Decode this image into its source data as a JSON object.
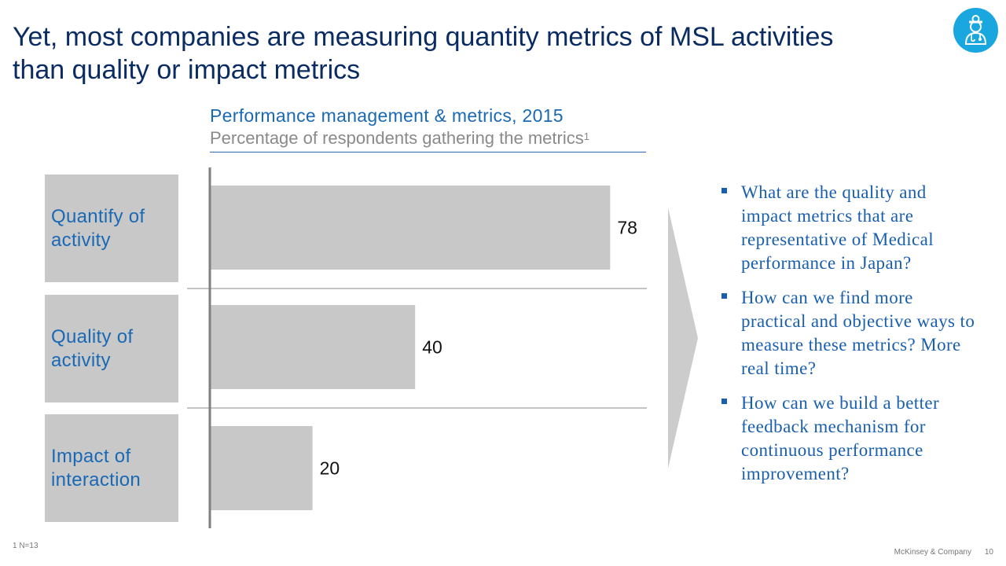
{
  "title": {
    "line1": "Yet, most companies are measuring quantity metrics of MSL activities",
    "line2": "than quality or impact metrics"
  },
  "logo_icon": "doctor-icon",
  "chart_data": {
    "type": "bar",
    "orientation": "horizontal",
    "title": "Performance management & metrics, 2015",
    "subtitle": "Percentage of respondents gathering the metrics",
    "subtitle_footnote_marker": "1",
    "categories": [
      {
        "line1": "Quantify of",
        "line2": "activity"
      },
      {
        "line1": "Quality of",
        "line2": "activity"
      },
      {
        "line1": "Impact of",
        "line2": "interaction"
      }
    ],
    "values": [
      78,
      40,
      20
    ],
    "xlim": [
      0,
      80
    ],
    "grid": false,
    "bar_color": "#c8c8c8"
  },
  "bullets": [
    "What are the quality and impact metrics that are representative of Medical performance in Japan?",
    "How can we find more practical and objective ways to measure these metrics? More real time?",
    "How can we build a better feedback mechanism for continuous performance improvement?"
  ],
  "footnote": "1 N=13",
  "source": "McKinsey & Company",
  "page_number": "10",
  "colors": {
    "title": "#0b2c63",
    "accent": "#1a69b4",
    "logo": "#1aa7e0",
    "bar": "#c8c8c8",
    "subtitle": "#8a8a8a"
  }
}
